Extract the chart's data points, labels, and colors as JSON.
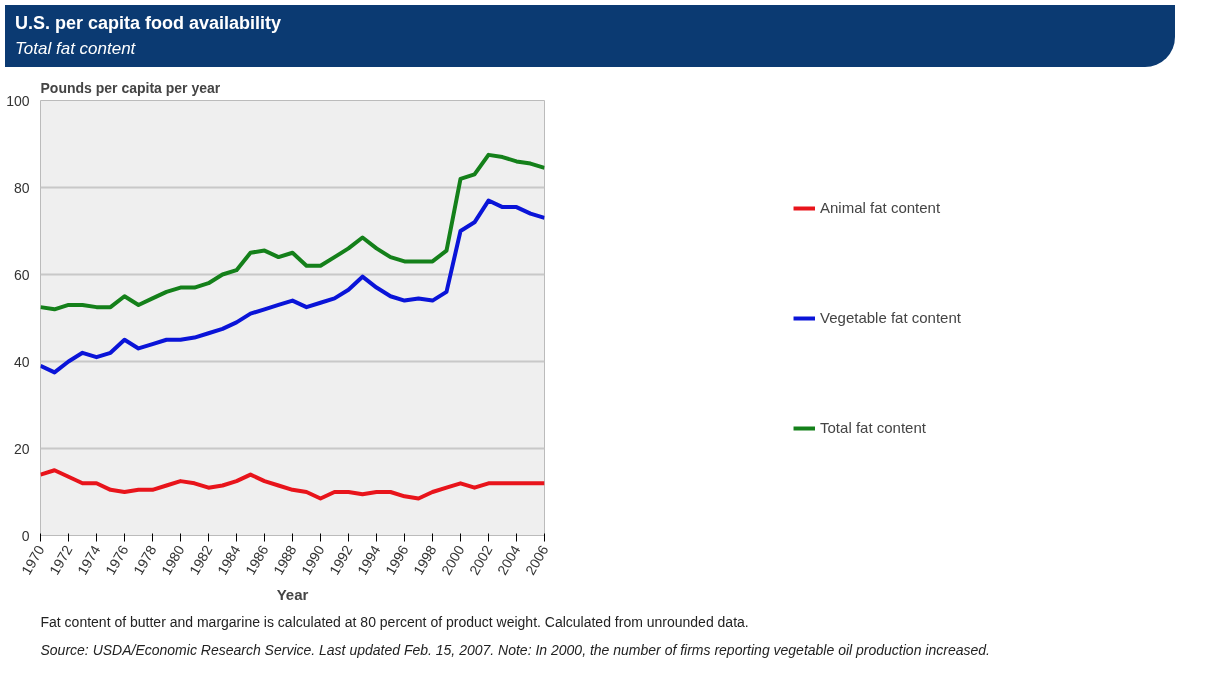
{
  "chart_data": {
    "type": "line",
    "title": "U.S. per capita food availability",
    "subtitle": "Total fat content",
    "ylabel": "Pounds per capita per year",
    "xlabel": "Year",
    "x": [
      1970,
      1971,
      1972,
      1973,
      1974,
      1975,
      1976,
      1977,
      1978,
      1979,
      1980,
      1981,
      1982,
      1983,
      1984,
      1985,
      1986,
      1987,
      1988,
      1989,
      1990,
      1991,
      1992,
      1993,
      1994,
      1995,
      1996,
      1997,
      1998,
      1999,
      2000,
      2001,
      2002,
      2003,
      2004,
      2005,
      2006
    ],
    "series": [
      {
        "name": "Animal fat content",
        "color": "#e8141b",
        "values": [
          14,
          15,
          13.5,
          12,
          12,
          10.5,
          10,
          10.5,
          10.5,
          11.5,
          12.5,
          12,
          11,
          11.5,
          12.5,
          14,
          12.5,
          11.5,
          10.5,
          10,
          8.5,
          10,
          10,
          9.5,
          10,
          10,
          9,
          8.5,
          10,
          11,
          12,
          11,
          12,
          12,
          12,
          12,
          12
        ]
      },
      {
        "name": "Vegetable fat content",
        "color": "#0a14d8",
        "values": [
          39,
          37.5,
          40,
          42,
          41,
          42,
          45,
          43,
          44,
          45,
          45,
          45.5,
          46.5,
          47.5,
          49,
          51,
          52,
          53,
          54,
          52.5,
          53.5,
          54.5,
          56.5,
          59.5,
          57,
          55,
          54,
          54.5,
          54,
          56,
          70,
          72,
          77,
          75.5,
          75.5,
          74,
          73
        ]
      },
      {
        "name": "Total fat content",
        "color": "#14801a",
        "values": [
          52.5,
          52,
          53,
          53,
          52.5,
          52.5,
          55,
          53,
          54.5,
          56,
          57,
          57,
          58,
          60,
          61,
          65,
          65.5,
          64,
          65,
          62,
          62,
          64,
          66,
          68.5,
          66,
          64,
          63,
          63,
          63,
          65.5,
          82,
          83,
          87.5,
          87,
          86,
          85.5,
          84.5
        ]
      }
    ],
    "xlim": [
      1970,
      2006
    ],
    "xticks": [
      1970,
      1972,
      1974,
      1976,
      1978,
      1980,
      1982,
      1984,
      1986,
      1988,
      1990,
      1992,
      1994,
      1996,
      1998,
      2000,
      2002,
      2004,
      2006
    ],
    "ylim": [
      0,
      100
    ],
    "yticks": [
      0,
      20,
      40,
      60,
      80,
      100
    ],
    "grid": "y",
    "legend": "right",
    "marker": "none",
    "line_style": "solid",
    "annotations": [
      "Fat content of butter and margarine is calculated at 80 percent of product weight. Calculated from unrounded data.",
      "Source: USDA/Economic Research Service. Last updated Feb. 15, 2007. Note: In 2000, the number of firms reporting vegetable oil production increased."
    ]
  }
}
